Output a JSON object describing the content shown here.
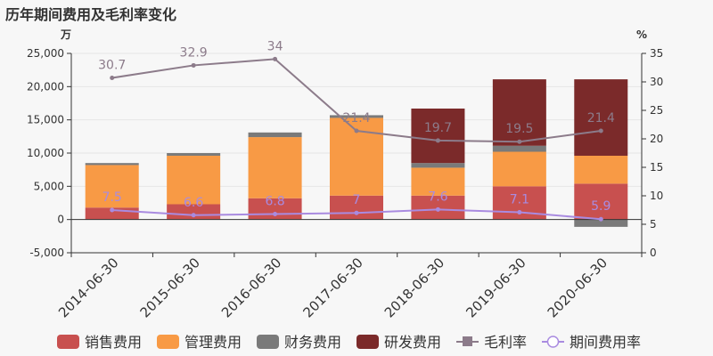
{
  "title": "历年期间费用及毛利率变化",
  "chart_data": {
    "type": "bar",
    "stacked": true,
    "categories": [
      "2014-06-30",
      "2015-06-30",
      "2016-06-30",
      "2017-06-30",
      "2018-06-30",
      "2019-06-30",
      "2020-06-30"
    ],
    "left_axis": {
      "unit": "万",
      "ylim": [
        -5000,
        25000
      ],
      "ticks": [
        -5000,
        0,
        5000,
        10000,
        15000,
        20000,
        25000
      ],
      "tick_labels": [
        "-5,000",
        "0",
        "5,000",
        "10,000",
        "15,000",
        "20,000",
        "25,000"
      ]
    },
    "right_axis": {
      "unit": "%",
      "ylim": [
        0,
        35
      ],
      "ticks": [
        0,
        5,
        10,
        15,
        20,
        25,
        30,
        35
      ],
      "tick_labels": [
        "0",
        "5",
        "10",
        "15",
        "20",
        "25",
        "30",
        "35"
      ]
    },
    "series": [
      {
        "name": "销售费用",
        "kind": "bar",
        "color": "#c8504f",
        "values": [
          1800,
          2300,
          3200,
          3600,
          3600,
          5000,
          5400
        ]
      },
      {
        "name": "管理费用",
        "kind": "bar",
        "color": "#f89a45",
        "values": [
          6400,
          7300,
          9200,
          11700,
          4200,
          5200,
          4200
        ]
      },
      {
        "name": "财务费用",
        "kind": "bar",
        "color": "#7a7a7a",
        "values": [
          300,
          400,
          700,
          400,
          700,
          900,
          -1100
        ]
      },
      {
        "name": "研发费用",
        "kind": "bar",
        "color": "#7b2a2a",
        "values": [
          0,
          0,
          0,
          0,
          8200,
          10000,
          11500
        ]
      },
      {
        "name": "毛利率",
        "kind": "line",
        "axis": "right",
        "color": "#8c7b8a",
        "values": [
          30.7,
          32.9,
          34,
          21.4,
          19.7,
          19.5,
          21.4
        ],
        "labels": [
          "30.7",
          "32.9",
          "34",
          "21.4",
          "19.7",
          "19.5",
          "21.4"
        ]
      },
      {
        "name": "期间费用率",
        "kind": "line",
        "axis": "right",
        "color": "#a98be0",
        "values": [
          7.5,
          6.6,
          6.8,
          7,
          7.6,
          7.1,
          5.9
        ],
        "labels": [
          "7.5",
          "6.6",
          "6.8",
          "7",
          "7.6",
          "7.1",
          "5.9"
        ]
      }
    ],
    "grid": true,
    "legend_position": "bottom"
  }
}
